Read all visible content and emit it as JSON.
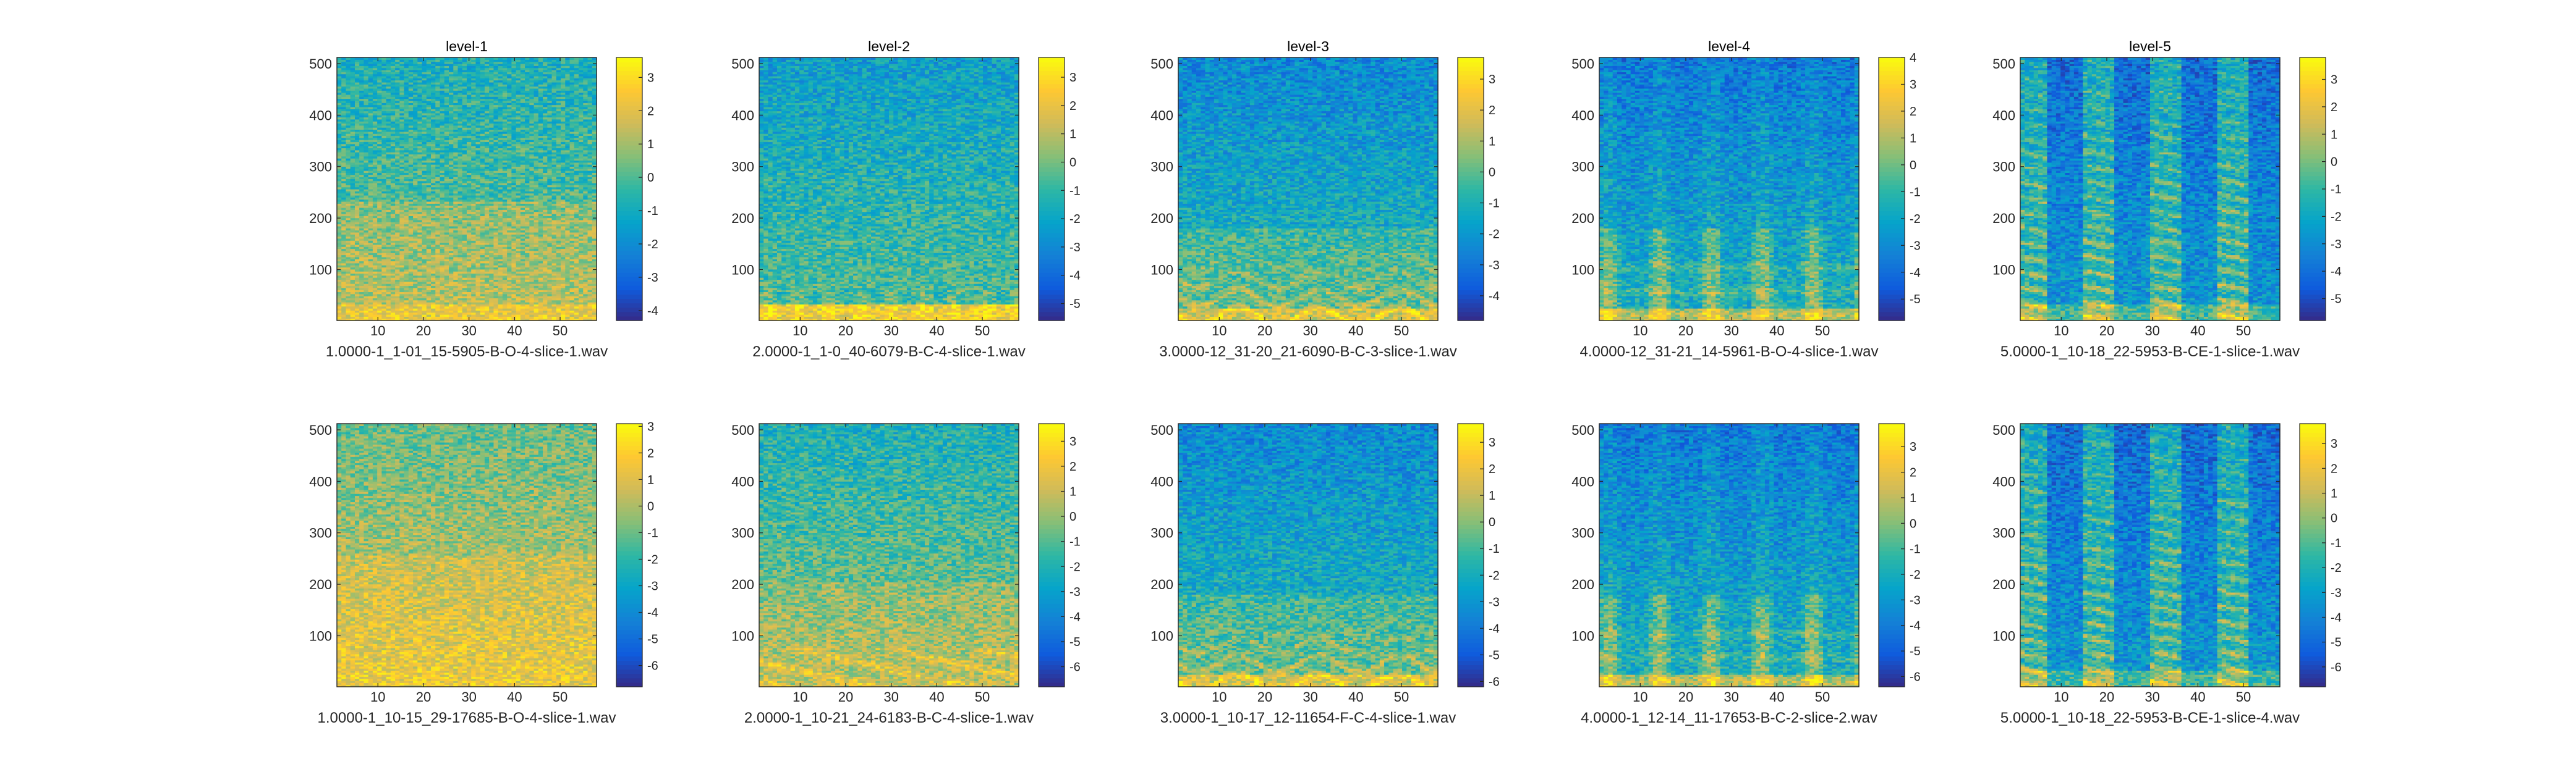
{
  "figure": {
    "background": "#ffffff",
    "colormap": "parula",
    "colormap_stops": [
      "#352a87",
      "#0f5cdd",
      "#1481d6",
      "#06a4ca",
      "#2eb7a4",
      "#87bf77",
      "#d1bb59",
      "#fec832",
      "#f9fb0e"
    ]
  },
  "chart_data": [
    {
      "type": "heatmap",
      "title": "level-1",
      "xlabel": "1.0000-1_1-01_15-5905-B-O-4-slice-1.wav",
      "ylabel": "",
      "xlim": [
        1,
        58
      ],
      "ylim": [
        1,
        512
      ],
      "xticks": [
        10,
        20,
        30,
        40,
        50
      ],
      "yticks": [
        100,
        200,
        300,
        400,
        500
      ],
      "colorbar": {
        "limits": [
          -4.3,
          3.6
        ],
        "ticks": [
          -4,
          -3,
          -2,
          -1,
          0,
          1,
          2,
          3
        ]
      },
      "pattern": "noise"
    },
    {
      "type": "heatmap",
      "title": "level-2",
      "xlabel": "2.0000-1_1-0_40-6079-B-C-4-slice-1.wav",
      "ylabel": "",
      "xlim": [
        1,
        58
      ],
      "ylim": [
        1,
        512
      ],
      "xticks": [
        10,
        20,
        30,
        40,
        50
      ],
      "yticks": [
        100,
        200,
        300,
        400,
        500
      ],
      "colorbar": {
        "limits": [
          -5.6,
          3.7
        ],
        "ticks": [
          -5,
          -4,
          -3,
          -2,
          -1,
          0,
          1,
          2,
          3
        ]
      },
      "pattern": "lowband"
    },
    {
      "type": "heatmap",
      "title": "level-3",
      "xlabel": "3.0000-12_31-20_21-6090-B-C-3-slice-1.wav",
      "ylabel": "",
      "xlim": [
        1,
        58
      ],
      "ylim": [
        1,
        512
      ],
      "xticks": [
        10,
        20,
        30,
        40,
        50
      ],
      "yticks": [
        100,
        200,
        300,
        400,
        500
      ],
      "colorbar": {
        "limits": [
          -4.8,
          3.7
        ],
        "ticks": [
          -4,
          -3,
          -2,
          -1,
          0,
          1,
          2,
          3
        ]
      },
      "pattern": "harmonic"
    },
    {
      "type": "heatmap",
      "title": "level-4",
      "xlabel": "4.0000-12_31-21_14-5961-B-O-4-slice-1.wav",
      "ylabel": "",
      "xlim": [
        1,
        58
      ],
      "ylim": [
        1,
        512
      ],
      "xticks": [
        10,
        20,
        30,
        40,
        50
      ],
      "yticks": [
        100,
        200,
        300,
        400,
        500
      ],
      "colorbar": {
        "limits": [
          -5.8,
          4.0
        ],
        "ticks": [
          -5,
          -4,
          -3,
          -2,
          -1,
          0,
          1,
          2,
          3,
          4
        ]
      },
      "pattern": "bursts"
    },
    {
      "type": "heatmap",
      "title": "level-5",
      "xlabel": "5.0000-1_10-18_22-5953-B-CE-1-slice-1.wav",
      "ylabel": "",
      "xlim": [
        1,
        58
      ],
      "ylim": [
        1,
        512
      ],
      "xticks": [
        10,
        20,
        30,
        40,
        50
      ],
      "yticks": [
        100,
        200,
        300,
        400,
        500
      ],
      "colorbar": {
        "limits": [
          -5.8,
          3.8
        ],
        "ticks": [
          -5,
          -4,
          -3,
          -2,
          -1,
          0,
          1,
          2,
          3
        ]
      },
      "pattern": "striped"
    },
    {
      "type": "heatmap",
      "title": "",
      "xlabel": "1.0000-1_10-15_29-17685-B-O-4-slice-1.wav",
      "ylabel": "",
      "xlim": [
        1,
        58
      ],
      "ylim": [
        1,
        512
      ],
      "xticks": [
        10,
        20,
        30,
        40,
        50
      ],
      "yticks": [
        100,
        200,
        300,
        400,
        500
      ],
      "colorbar": {
        "limits": [
          -6.8,
          3.1
        ],
        "ticks": [
          -6,
          -5,
          -4,
          -3,
          -2,
          -1,
          0,
          1,
          2,
          3
        ]
      },
      "pattern": "warm"
    },
    {
      "type": "heatmap",
      "title": "",
      "xlabel": "2.0000-1_10-21_24-6183-B-C-4-slice-1.wav",
      "ylabel": "",
      "xlim": [
        1,
        58
      ],
      "ylim": [
        1,
        512
      ],
      "xticks": [
        10,
        20,
        30,
        40,
        50
      ],
      "yticks": [
        100,
        200,
        300,
        400,
        500
      ],
      "colorbar": {
        "limits": [
          -6.8,
          3.7
        ],
        "ticks": [
          -6,
          -5,
          -4,
          -3,
          -2,
          -1,
          0,
          1,
          2,
          3
        ]
      },
      "pattern": "warmband"
    },
    {
      "type": "heatmap",
      "title": "",
      "xlabel": "3.0000-1_10-17_12-11654-F-C-4-slice-1.wav",
      "ylabel": "",
      "xlim": [
        1,
        58
      ],
      "ylim": [
        1,
        512
      ],
      "xticks": [
        10,
        20,
        30,
        40,
        50
      ],
      "yticks": [
        100,
        200,
        300,
        400,
        500
      ],
      "colorbar": {
        "limits": [
          -6.2,
          3.7
        ],
        "ticks": [
          -6,
          -5,
          -4,
          -3,
          -2,
          -1,
          0,
          1,
          2,
          3
        ]
      },
      "pattern": "harmonic"
    },
    {
      "type": "heatmap",
      "title": "",
      "xlabel": "4.0000-1_12-14_11-17653-B-C-2-slice-2.wav",
      "ylabel": "",
      "xlim": [
        1,
        58
      ],
      "ylim": [
        1,
        512
      ],
      "xticks": [
        10,
        20,
        30,
        40,
        50
      ],
      "yticks": [
        100,
        200,
        300,
        400,
        500
      ],
      "colorbar": {
        "limits": [
          -6.4,
          3.9
        ],
        "ticks": [
          -6,
          -5,
          -4,
          -3,
          -2,
          -1,
          0,
          1,
          2,
          3
        ]
      },
      "pattern": "bursts"
    },
    {
      "type": "heatmap",
      "title": "",
      "xlabel": "5.0000-1_10-18_22-5953-B-CE-1-slice-4.wav",
      "ylabel": "",
      "xlim": [
        1,
        58
      ],
      "ylim": [
        1,
        512
      ],
      "xticks": [
        10,
        20,
        30,
        40,
        50
      ],
      "yticks": [
        100,
        200,
        300,
        400,
        500
      ],
      "colorbar": {
        "limits": [
          -6.8,
          3.8
        ],
        "ticks": [
          -6,
          -5,
          -4,
          -3,
          -2,
          -1,
          0,
          1,
          2,
          3
        ]
      },
      "pattern": "striped"
    }
  ]
}
